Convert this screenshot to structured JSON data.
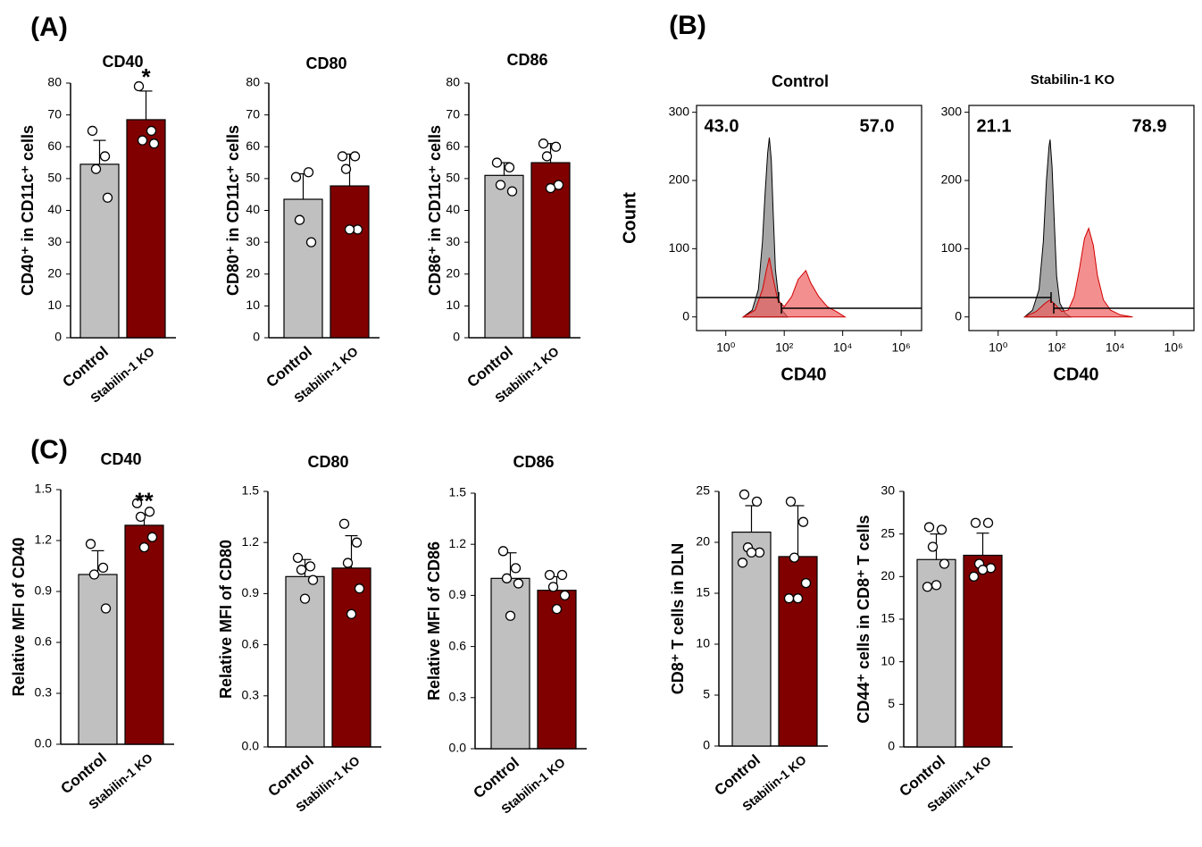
{
  "panel_labels": [
    "(A)",
    "(B)",
    "(C)"
  ],
  "chart_data": [
    {
      "type": "bar",
      "title": "CD40",
      "y_label": "CD40⁺ in CD11c⁺ cells",
      "categories": [
        "Control",
        "Stabilin-1 KO"
      ],
      "values": [
        54.5,
        68.5
      ],
      "errors": [
        7.5,
        9
      ],
      "points": [
        [
          65,
          57,
          53,
          44
        ],
        [
          79,
          65,
          62,
          61
        ]
      ],
      "colors": [
        "#c0c0c0",
        "#800000"
      ],
      "ylim": [
        0,
        80
      ],
      "yticks": [
        0,
        10,
        20,
        30,
        40,
        50,
        60,
        70,
        80
      ],
      "annotation": "*"
    },
    {
      "type": "bar",
      "title": "CD80",
      "y_label": "CD80⁺ in CD11c⁺ cells",
      "categories": [
        "Control",
        "Stabilin-1 KO"
      ],
      "values": [
        43.5,
        47.7
      ],
      "errors": [
        8,
        10
      ],
      "points": [
        [
          50.5,
          52,
          37,
          30
        ],
        [
          57,
          57,
          53,
          34,
          34
        ]
      ],
      "colors": [
        "#c0c0c0",
        "#800000"
      ],
      "ylim": [
        0,
        80
      ],
      "yticks": [
        0,
        10,
        20,
        30,
        40,
        50,
        60,
        70,
        80
      ]
    },
    {
      "type": "bar",
      "title": "CD86",
      "y_label": "CD86⁺ in CD11c⁺ cells",
      "categories": [
        "Control",
        "Stabilin-1 KO"
      ],
      "values": [
        51,
        55
      ],
      "errors": [
        4,
        6
      ],
      "points": [
        [
          55,
          53.5,
          48,
          46
        ],
        [
          61,
          60,
          57,
          48,
          47
        ]
      ],
      "colors": [
        "#c0c0c0",
        "#800000"
      ],
      "ylim": [
        0,
        80
      ],
      "yticks": [
        0,
        10,
        20,
        30,
        40,
        50,
        60,
        70,
        80
      ]
    },
    {
      "type": "flow",
      "title": "Control",
      "x_label": "CD40",
      "y_label": "Count",
      "xscale": "log",
      "xlim": [
        0.1,
        5000000
      ],
      "ylim": [
        -20,
        310
      ],
      "xticks": [
        {
          "value": 1,
          "label": "10⁰"
        },
        {
          "value": 100,
          "label": "10²"
        },
        {
          "value": 10000,
          "label": "10⁴"
        },
        {
          "value": 1000000,
          "label": "10⁶"
        }
      ],
      "yticks": [
        0,
        100,
        200,
        300
      ],
      "values": [
        43,
        57
      ],
      "value_labels": [
        "43.0",
        "57.0"
      ],
      "series": [
        {
          "color": "#808080",
          "x": [
            4,
            8,
            13,
            18,
            22,
            27,
            31,
            36,
            42,
            50,
            65,
            90,
            130
          ],
          "values": [
            0,
            10,
            40,
            110,
            180,
            240,
            263,
            230,
            150,
            70,
            25,
            8,
            0
          ]
        },
        {
          "color": "#f06060",
          "x": [
            4,
            10,
            18,
            25,
            31,
            40,
            60,
            100,
            180,
            300,
            550,
            800,
            1500,
            3000,
            6000,
            12000
          ],
          "values": [
            0,
            10,
            40,
            70,
            87,
            60,
            25,
            15,
            30,
            55,
            68,
            50,
            30,
            15,
            8,
            0
          ]
        }
      ]
    },
    {
      "type": "flow",
      "title": "Stabilin-1 KO",
      "x_label": "CD40",
      "xscale": "log",
      "xlim": [
        0.1,
        5000000
      ],
      "ylim": [
        -20,
        310
      ],
      "xticks": [
        {
          "value": 1,
          "label": "10⁰"
        },
        {
          "value": 100,
          "label": "10²"
        },
        {
          "value": 10000,
          "label": "10⁴"
        },
        {
          "value": 1000000,
          "label": "10⁶"
        }
      ],
      "yticks": [
        0,
        100,
        200,
        300
      ],
      "values": [
        21.1,
        78.9
      ],
      "value_labels": [
        "21.1",
        "78.9"
      ],
      "series": [
        {
          "color": "#808080",
          "x": [
            8,
            15,
            25,
            35,
            45,
            55,
            60,
            70,
            85,
            100,
            130,
            200,
            300
          ],
          "values": [
            0,
            10,
            40,
            110,
            200,
            250,
            260,
            220,
            130,
            60,
            20,
            5,
            0
          ]
        },
        {
          "color": "#f06060",
          "x": [
            8,
            20,
            40,
            60,
            90,
            150,
            250,
            400,
            600,
            900,
            1250,
            1800,
            2500,
            4000,
            7000,
            15000,
            40000
          ],
          "values": [
            0,
            8,
            20,
            25,
            18,
            8,
            10,
            30,
            70,
            115,
            130,
            105,
            60,
            25,
            10,
            3,
            0
          ]
        }
      ]
    },
    {
      "type": "bar",
      "title": "CD40",
      "y_label": "Relative MFI of CD40",
      "categories": [
        "Control",
        "Stabilin-1 KO"
      ],
      "values": [
        1.0,
        1.29
      ],
      "errors": [
        0.14,
        0.06
      ],
      "points": [
        [
          1.18,
          1.04,
          1.0,
          0.8
        ],
        [
          1.42,
          1.37,
          1.34,
          1.22,
          1.16
        ]
      ],
      "colors": [
        "#c0c0c0",
        "#800000"
      ],
      "ylim": [
        0,
        1.5
      ],
      "yticks": [
        {
          "value": 0,
          "label": "0.0"
        },
        0.3,
        0.6,
        0.9,
        1.2,
        1.5
      ],
      "annotation": "**"
    },
    {
      "type": "bar",
      "title": "CD80",
      "y_label": "Relative MFI of CD80",
      "categories": [
        "Control",
        "Stabilin-1 KO"
      ],
      "values": [
        1.0,
        1.05
      ],
      "errors": [
        0.1,
        0.19
      ],
      "points": [
        [
          1.11,
          1.06,
          1.04,
          0.98,
          0.87
        ],
        [
          1.31,
          1.2,
          1.08,
          0.93,
          0.78
        ]
      ],
      "colors": [
        "#c0c0c0",
        "#800000"
      ],
      "ylim": [
        0,
        1.5
      ],
      "yticks": [
        {
          "value": 0,
          "label": "0.0"
        },
        0.3,
        0.6,
        0.9,
        1.2,
        1.5
      ]
    },
    {
      "type": "bar",
      "title": "CD86",
      "y_label": "Relative MFI of CD86",
      "categories": [
        "Control",
        "Stabilin-1 KO"
      ],
      "values": [
        1.0,
        0.93
      ],
      "errors": [
        0.15,
        0.08
      ],
      "points": [
        [
          1.16,
          1.06,
          1.0,
          0.97,
          0.78
        ],
        [
          1.02,
          1.02,
          0.95,
          0.9,
          0.82
        ]
      ],
      "colors": [
        "#c0c0c0",
        "#800000"
      ],
      "ylim": [
        0,
        1.5
      ],
      "yticks": [
        {
          "value": 0,
          "label": "0.0"
        },
        0.3,
        0.6,
        0.9,
        1.2,
        1.5
      ]
    },
    {
      "type": "bar",
      "y_label": "CD8⁺ T cells in DLN",
      "categories": [
        "Control",
        "Stabilin-1 KO"
      ],
      "values": [
        21,
        18.6
      ],
      "errors": [
        2.6,
        5
      ],
      "points": [
        [
          24.7,
          24,
          19.5,
          19,
          19,
          18
        ],
        [
          24,
          22,
          18.5,
          16,
          14.5,
          14.5
        ]
      ],
      "colors": [
        "#c0c0c0",
        "#800000"
      ],
      "ylim": [
        0,
        25
      ],
      "yticks": [
        0,
        5,
        10,
        15,
        20,
        25
      ]
    },
    {
      "type": "bar",
      "y_label": "CD44⁺ cells in CD8⁺ T cells",
      "categories": [
        "Control",
        "Stabilin-1 KO"
      ],
      "values": [
        22,
        22.5
      ],
      "errors": [
        3,
        2.6
      ],
      "points": [
        [
          25.8,
          25.5,
          23.5,
          21.5,
          19,
          18.8
        ],
        [
          26.3,
          26.3,
          21.5,
          21,
          20.8,
          20
        ]
      ],
      "colors": [
        "#c0c0c0",
        "#800000"
      ],
      "ylim": [
        0,
        30
      ],
      "yticks": [
        0,
        5,
        10,
        15,
        20,
        25,
        30
      ]
    }
  ]
}
